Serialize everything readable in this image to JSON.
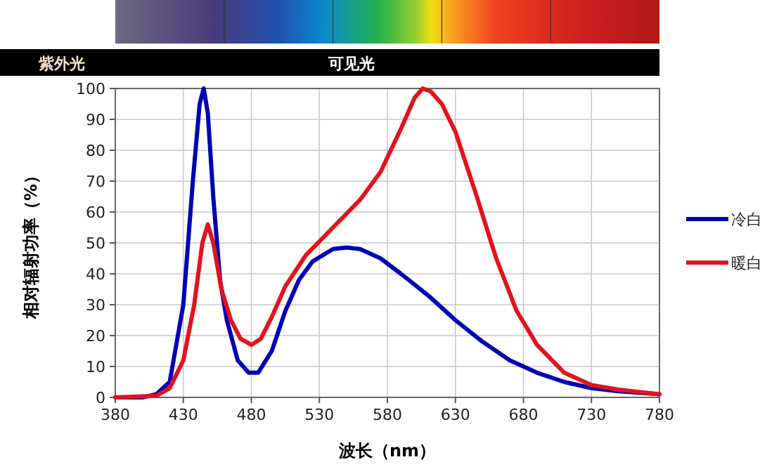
{
  "chart_data": {
    "type": "line",
    "xlabel": "波长（nm）",
    "ylabel": "相对辐射功率（%）",
    "annotations": [
      "紫外光",
      "可见光"
    ],
    "xlim": [
      380,
      780
    ],
    "xticks": [
      380,
      430,
      480,
      530,
      580,
      630,
      680,
      730,
      780
    ],
    "ylim": [
      0,
      100
    ],
    "yticks": [
      0,
      10,
      20,
      30,
      40,
      50,
      60,
      70,
      80,
      90,
      100
    ],
    "grid": true,
    "legend": "right",
    "marker": "none",
    "line_style": "solid",
    "series": [
      {
        "name": "冷白",
        "color": "#0000b4",
        "x": [
          380,
          400,
          410,
          420,
          430,
          437,
          442,
          445,
          448,
          452,
          457,
          462,
          470,
          478,
          485,
          495,
          505,
          515,
          525,
          540,
          550,
          560,
          575,
          590,
          610,
          630,
          650,
          670,
          690,
          710,
          730,
          750,
          780
        ],
        "values": [
          0,
          0,
          1,
          5,
          30,
          70,
          95,
          100,
          92,
          65,
          38,
          25,
          12,
          8,
          8,
          15,
          28,
          38,
          44,
          48,
          48.5,
          48,
          45,
          40,
          33,
          25,
          18,
          12,
          8,
          5,
          3,
          2,
          1
        ]
      },
      {
        "name": "暖白",
        "color": "#e0141e",
        "x": [
          380,
          410,
          420,
          430,
          438,
          444,
          448,
          452,
          458,
          465,
          472,
          480,
          487,
          495,
          505,
          520,
          540,
          560,
          575,
          590,
          600,
          606,
          612,
          620,
          630,
          645,
          660,
          675,
          690,
          710,
          730,
          750,
          780
        ],
        "values": [
          0,
          0.5,
          3,
          12,
          30,
          50,
          56,
          50,
          35,
          25,
          19,
          17,
          19,
          26,
          36,
          46,
          55,
          64,
          73,
          87,
          97,
          100,
          99,
          95,
          86,
          66,
          45,
          28,
          17,
          8,
          4,
          2.5,
          1
        ]
      }
    ]
  }
}
